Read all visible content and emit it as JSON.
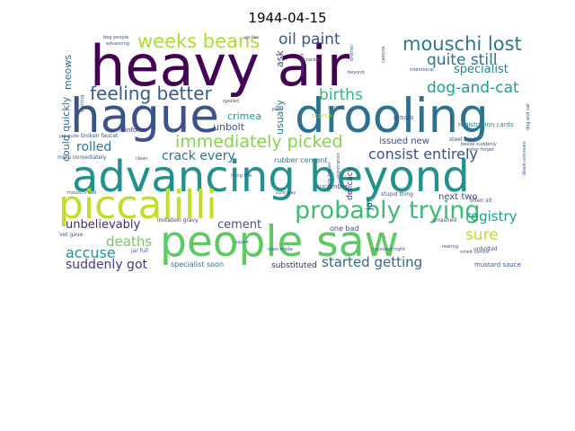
{
  "chart_data": {
    "type": "wordcloud",
    "title": "1944-04-15",
    "palette": "viridis",
    "background": "#ffffff",
    "words": [
      {
        "text": "heavy air",
        "weight": 1.0,
        "color": "#440154"
      },
      {
        "text": "hague",
        "weight": 0.84,
        "color": "#3b528b"
      },
      {
        "text": "drooling",
        "weight": 0.84,
        "color": "#2c728e"
      },
      {
        "text": "advancing beyond",
        "weight": 0.76,
        "color": "#21918c"
      },
      {
        "text": "people saw",
        "weight": 0.74,
        "color": "#5ec962"
      },
      {
        "text": "piccalilli",
        "weight": 0.7,
        "color": "#bddf26"
      },
      {
        "text": "probably trying",
        "weight": 0.4,
        "color": "#3fbc73"
      },
      {
        "text": "weeks beans",
        "weight": 0.3,
        "color": "#addc30"
      },
      {
        "text": "mouschi lost",
        "weight": 0.3,
        "color": "#2a788e"
      },
      {
        "text": "feeling better",
        "weight": 0.28,
        "color": "#365c8d"
      },
      {
        "text": "immediately picked",
        "weight": 0.26,
        "color": "#84d44b"
      },
      {
        "text": "oil paint",
        "weight": 0.24,
        "color": "#3b528b"
      },
      {
        "text": "quite still",
        "weight": 0.24,
        "color": "#2c728e"
      },
      {
        "text": "dog-and-cat",
        "weight": 0.24,
        "color": "#1f9e89"
      },
      {
        "text": "births",
        "weight": 0.24,
        "color": "#35b779"
      },
      {
        "text": "consist entirely",
        "weight": 0.22,
        "color": "#3b528b"
      },
      {
        "text": "sure",
        "weight": 0.24,
        "color": "#b5de2b"
      },
      {
        "text": "started getting",
        "weight": 0.2,
        "color": "#31688e"
      },
      {
        "text": "accuse",
        "weight": 0.22,
        "color": "#21918c"
      },
      {
        "text": "deaths",
        "weight": 0.2,
        "color": "#6ece58"
      },
      {
        "text": "registry",
        "weight": 0.2,
        "color": "#1f9e89"
      },
      {
        "text": "suddenly got",
        "weight": 0.18,
        "color": "#443983"
      },
      {
        "text": "crack every",
        "weight": 0.18,
        "color": "#2c728e"
      },
      {
        "text": "rolled",
        "weight": 0.18,
        "color": "#2a788e"
      },
      {
        "text": "unbelievably",
        "weight": 0.16,
        "color": "#482878"
      },
      {
        "text": "cement",
        "weight": 0.16,
        "color": "#3b528b"
      },
      {
        "text": "specialist",
        "weight": 0.16,
        "color": "#26828e"
      },
      {
        "text": "could quickly",
        "weight": 0.14,
        "color": "#31688e"
      },
      {
        "text": "meows",
        "weight": 0.14,
        "color": "#2c728e"
      },
      {
        "text": "usually",
        "weight": 0.14,
        "color": "#2a788e"
      },
      {
        "text": "ask",
        "weight": 0.14,
        "color": "#414487"
      },
      {
        "text": "crimea",
        "weight": 0.13,
        "color": "#1f9e89"
      },
      {
        "text": "unbolt",
        "weight": 0.13,
        "color": "#3b528b"
      },
      {
        "text": "issued new",
        "weight": 0.12,
        "color": "#3e4989"
      },
      {
        "text": "next two",
        "weight": 0.12,
        "color": "#3e4989"
      },
      {
        "text": "substituted",
        "weight": 0.1,
        "color": "#481f70"
      },
      {
        "text": "specialist soon",
        "weight": 0.09,
        "color": "#31688e"
      },
      {
        "text": "delicacy",
        "weight": 0.1,
        "color": "#46327e"
      },
      {
        "text": "rubber cement",
        "weight": 0.09,
        "color": "#2a788e"
      },
      {
        "text": "jar",
        "weight": 0.11,
        "color": "#3b528b"
      },
      {
        "text": "one bad",
        "weight": 0.08,
        "color": "#3e4989"
      },
      {
        "text": "mustard sauce",
        "weight": 0.07,
        "color": "#3b528b"
      },
      {
        "text": "registration cards",
        "weight": 0.07,
        "color": "#26828e"
      },
      {
        "text": "scarce",
        "weight": 0.06,
        "color": "#addc30"
      },
      {
        "text": "groats",
        "weight": 0.07,
        "color": "#3b528b"
      },
      {
        "text": "cucumber",
        "weight": 0.06,
        "color": "#3b528b"
      },
      {
        "text": "reinforce",
        "weight": 0.06,
        "color": "#46327e"
      },
      {
        "text": "broken faucet",
        "weight": 0.05,
        "color": "#3b528b"
      },
      {
        "text": "imitation gravy",
        "weight": 0.05,
        "color": "#46327e"
      },
      {
        "text": "miep immediately",
        "weight": 0.05,
        "color": "#3b528b"
      },
      {
        "text": "steel food",
        "weight": 0.05,
        "color": "#3b528b"
      },
      {
        "text": "smashed",
        "weight": 0.05,
        "color": "#3b528b"
      },
      {
        "text": "stupid thing",
        "weight": 0.05,
        "color": "#3b528b"
      },
      {
        "text": "often sit",
        "weight": 0.05,
        "color": "#3b528b"
      },
      {
        "text": "unbolted",
        "weight": 0.05,
        "color": "#3b528b"
      },
      {
        "text": "vet gave",
        "weight": 0.05,
        "color": "#3b528b"
      },
      {
        "text": "jar full",
        "weight": 0.05,
        "color": "#3b528b"
      },
      {
        "text": "soon made",
        "weight": 0.04,
        "color": "#3b528b"
      },
      {
        "text": "sure way",
        "weight": 0.04,
        "color": "#3b528b"
      },
      {
        "text": "registration",
        "weight": 0.04,
        "color": "#3b528b"
      },
      {
        "text": "nearly began",
        "weight": 0.04,
        "color": "#3b528b"
      },
      {
        "text": "sauce",
        "weight": 0.04,
        "color": "#3b528b"
      },
      {
        "text": "paint",
        "weight": 0.04,
        "color": "#3b528b"
      },
      {
        "text": "issued",
        "weight": 0.04,
        "color": "#3b528b"
      },
      {
        "text": "beyond",
        "weight": 0.04,
        "color": "#3b528b"
      },
      {
        "text": "cassino",
        "weight": 0.04,
        "color": "#3b528b"
      },
      {
        "text": "up-fan",
        "weight": 0.04,
        "color": "#3b528b"
      },
      {
        "text": "beg people",
        "weight": 0.03,
        "color": "#3b528b"
      },
      {
        "text": "advancing",
        "weight": 0.03,
        "color": "#3b528b"
      },
      {
        "text": "brother",
        "weight": 0.03,
        "color": "#3b528b"
      },
      {
        "text": "intentional",
        "weight": 0.03,
        "color": "#3b528b"
      },
      {
        "text": "crackers",
        "weight": 0.03,
        "color": "#3b528b"
      },
      {
        "text": "statement",
        "weight": 0.03,
        "color": "#3b528b"
      },
      {
        "text": "starting",
        "weight": 0.03,
        "color": "#3b528b"
      },
      {
        "text": "rearing",
        "weight": 0.03,
        "color": "#3b528b"
      },
      {
        "text": "clean",
        "weight": 0.03,
        "color": "#3b528b"
      },
      {
        "text": "thing like",
        "weight": 0.03,
        "color": "#3b528b"
      },
      {
        "text": "mouschi well",
        "weight": 0.03,
        "color": "#3b528b"
      },
      {
        "text": "peter forget",
        "weight": 0.03,
        "color": "#3b528b"
      },
      {
        "text": "dog and cat",
        "weight": 0.03,
        "color": "#3b528b"
      },
      {
        "text": "spoiled",
        "weight": 0.03,
        "color": "#3b528b"
      },
      {
        "text": "jan quite",
        "weight": 0.03,
        "color": "#3b528b"
      },
      {
        "text": "deals unknown",
        "weight": 0.03,
        "color": "#3b528b"
      },
      {
        "text": "received night",
        "weight": 0.03,
        "color": "#3b528b"
      },
      {
        "text": "beebe suddenly",
        "weight": 0.03,
        "color": "#3b528b"
      },
      {
        "text": "smelt consist",
        "weight": 0.03,
        "color": "#3b528b"
      }
    ]
  }
}
